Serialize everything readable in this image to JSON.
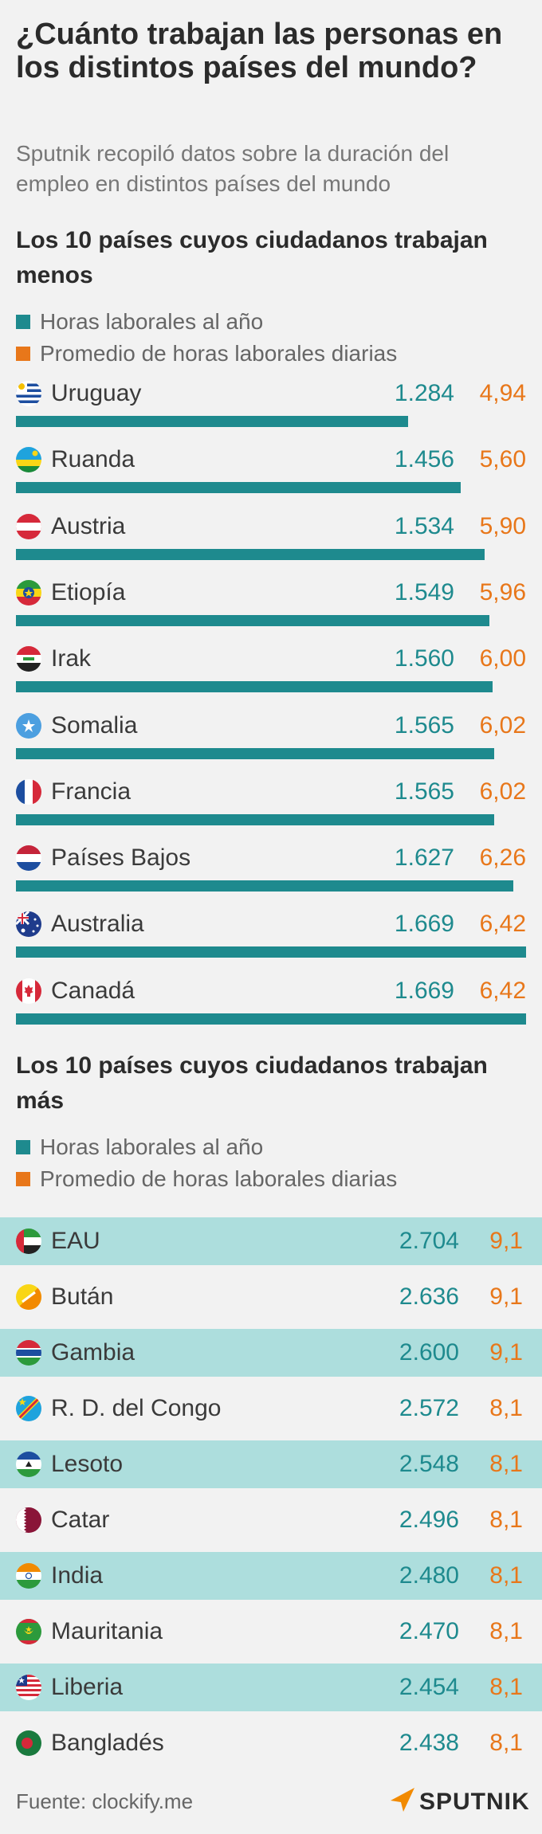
{
  "title": "¿Cuánto trabajan las personas en los distintos países del mundo?",
  "subtitle": "Sputnik recopiló datos sobre la duración del empleo en distintos países del mundo",
  "colors": {
    "annual": "#1e8a8e",
    "daily": "#e8771a",
    "shade": "#addedd"
  },
  "legend": {
    "annual": "Horas laborales al año",
    "daily": "Promedio de horas laborales diarias"
  },
  "source": "Fuente: clockify.me",
  "brand": "SPUTNIK",
  "chart_data": [
    {
      "type": "bar",
      "title": "Los 10 países cuyos ciudadanos trabajan menos",
      "max_value": 1669,
      "categories": [
        "Uruguay",
        "Ruanda",
        "Austria",
        "Etiopía",
        "Irak",
        "Somalia",
        "Francia",
        "Países Bajos",
        "Australia",
        "Canadá"
      ],
      "flags": [
        "uruguay-flag-icon",
        "rwanda-flag-icon",
        "austria-flag-icon",
        "ethiopia-flag-icon",
        "iraq-flag-icon",
        "somalia-flag-icon",
        "france-flag-icon",
        "netherlands-flag-icon",
        "australia-flag-icon",
        "canada-flag-icon"
      ],
      "series": [
        {
          "name": "Horas laborales al año",
          "values": [
            1284,
            1456,
            1534,
            1549,
            1560,
            1565,
            1565,
            1627,
            1669,
            1669
          ],
          "labels": [
            "1.284",
            "1.456",
            "1.534",
            "1.549",
            "1.560",
            "1.565",
            "1.565",
            "1.627",
            "1.669",
            "1.669"
          ]
        },
        {
          "name": "Promedio de horas laborales diarias",
          "values": [
            4.94,
            5.6,
            5.9,
            5.96,
            6.0,
            6.02,
            6.02,
            6.26,
            6.42,
            6.42
          ],
          "labels": [
            "4,94",
            "5,60",
            "5,90",
            "5,96",
            "6,00",
            "6,02",
            "6,02",
            "6,26",
            "6,42",
            "6,42"
          ]
        }
      ]
    },
    {
      "type": "table",
      "title": "Los 10 países cuyos ciudadanos trabajan más",
      "categories": [
        "EAU",
        "Bután",
        "Gambia",
        "R. D. del Congo",
        "Lesoto",
        "Catar",
        "India",
        "Mauritania",
        "Liberia",
        "Bangladés"
      ],
      "flags": [
        "uae-flag-icon",
        "bhutan-flag-icon",
        "gambia-flag-icon",
        "drc-flag-icon",
        "lesotho-flag-icon",
        "qatar-flag-icon",
        "india-flag-icon",
        "mauritania-flag-icon",
        "liberia-flag-icon",
        "bangladesh-flag-icon"
      ],
      "series": [
        {
          "name": "Horas laborales al año",
          "values": [
            2704,
            2636,
            2600,
            2572,
            2548,
            2496,
            2480,
            2470,
            2454,
            2438
          ],
          "labels": [
            "2.704",
            "2.636",
            "2.600",
            "2.572",
            "2.548",
            "2.496",
            "2.480",
            "2.470",
            "2.454",
            "2.438"
          ]
        },
        {
          "name": "Promedio de horas laborales diarias",
          "values": [
            9.1,
            9.1,
            9.1,
            8.1,
            8.1,
            8.1,
            8.1,
            8.1,
            8.1,
            8.1
          ],
          "labels": [
            "9,1",
            "9,1",
            "9,1",
            "8,1",
            "8,1",
            "8,1",
            "8,1",
            "8,1",
            "8,1",
            "8,1"
          ]
        }
      ]
    }
  ]
}
